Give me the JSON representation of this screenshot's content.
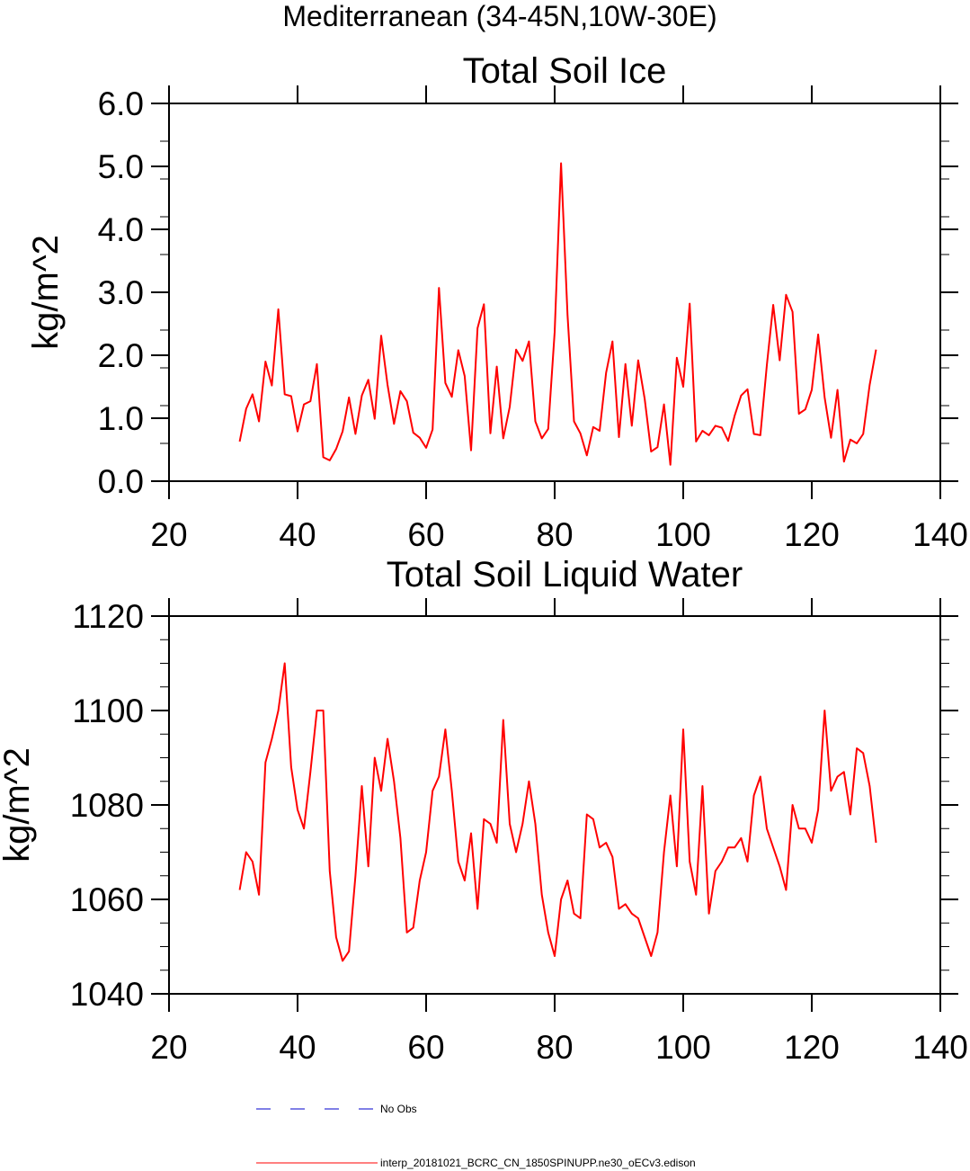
{
  "figure": {
    "title": "Mediterranean (34-45N,10W-30E)"
  },
  "chart_data": [
    {
      "type": "line",
      "title": "Total Soil Ice",
      "xlabel": "",
      "ylabel": "kg/m^2",
      "xlim": [
        20,
        140
      ],
      "ylim": [
        0,
        6
      ],
      "x_ticks": [
        "20",
        "40",
        "60",
        "80",
        "100",
        "120",
        "140"
      ],
      "y_ticks": [
        "0.0",
        "1.0",
        "2.0",
        "3.0",
        "4.0",
        "5.0",
        "6.0"
      ],
      "series": [
        {
          "name": "interp_20181021_BCRC_CN_1850SPINUPP.ne30_oECv3.edison",
          "color": "#ff0000",
          "x_start": 31,
          "values": [
            0.63,
            1.15,
            1.38,
            0.95,
            1.9,
            1.52,
            2.73,
            1.38,
            1.35,
            0.79,
            1.22,
            1.27,
            1.86,
            0.38,
            0.33,
            0.51,
            0.79,
            1.33,
            0.75,
            1.36,
            1.61,
            0.99,
            2.31,
            1.53,
            0.91,
            1.43,
            1.27,
            0.77,
            0.69,
            0.53,
            0.82,
            3.07,
            1.56,
            1.34,
            2.08,
            1.67,
            0.49,
            2.43,
            2.81,
            0.76,
            1.82,
            0.68,
            1.18,
            2.09,
            1.91,
            2.22,
            0.95,
            0.68,
            0.83,
            2.37,
            5.05,
            2.64,
            0.95,
            0.76,
            0.41,
            0.86,
            0.8,
            1.72,
            2.22,
            0.7,
            1.86,
            0.88,
            1.92,
            1.31,
            0.47,
            0.54,
            1.22,
            0.26,
            1.96,
            1.5,
            2.82,
            0.63,
            0.8,
            0.73,
            0.88,
            0.85,
            0.64,
            1.04,
            1.36,
            1.46,
            0.75,
            0.73,
            1.84,
            2.8,
            1.92,
            2.96,
            2.69,
            1.07,
            1.14,
            1.45,
            2.33,
            1.33,
            0.69,
            1.45,
            0.31,
            0.66,
            0.6,
            0.75,
            1.53,
            2.09
          ]
        }
      ]
    },
    {
      "type": "line",
      "title": "Total Soil Liquid Water",
      "xlabel": "",
      "ylabel": "kg/m^2",
      "xlim": [
        20,
        140
      ],
      "ylim": [
        1040,
        1120
      ],
      "x_ticks": [
        "20",
        "40",
        "60",
        "80",
        "100",
        "120",
        "140"
      ],
      "y_ticks": [
        "1040",
        "1060",
        "1080",
        "1100",
        "1120"
      ],
      "series": [
        {
          "name": "interp_20181021_BCRC_CN_1850SPINUPP.ne30_oECv3.edison",
          "color": "#ff0000",
          "x_start": 31,
          "values": [
            1062,
            1070,
            1068,
            1061,
            1089,
            1094,
            1100,
            1110,
            1088,
            1079,
            1075,
            1087,
            1100,
            1100,
            1066,
            1052,
            1047,
            1049,
            1065,
            1084,
            1067,
            1090,
            1083,
            1094,
            1085,
            1073,
            1053,
            1054,
            1064,
            1070,
            1083,
            1086,
            1096,
            1083,
            1068,
            1064,
            1074,
            1058,
            1077,
            1076,
            1072,
            1098,
            1076,
            1070,
            1076,
            1085,
            1076,
            1061,
            1053,
            1048,
            1060,
            1064,
            1057,
            1056,
            1078,
            1077,
            1071,
            1072,
            1069,
            1058,
            1059,
            1057,
            1056,
            1052,
            1048,
            1053,
            1070,
            1082,
            1067,
            1096,
            1068,
            1061,
            1084,
            1057,
            1066,
            1068,
            1071,
            1071,
            1073,
            1068,
            1082,
            1086,
            1075,
            1071,
            1067,
            1062,
            1080,
            1075,
            1075,
            1072,
            1079,
            1100,
            1083,
            1086,
            1087,
            1078,
            1092,
            1091,
            1084,
            1072
          ]
        }
      ]
    }
  ],
  "legend": {
    "entries": [
      {
        "label": "No Obs",
        "color": "#0000cc",
        "style": "dashed"
      },
      {
        "label": "interp_20181021_BCRC_CN_1850SPINUPP.ne30_oECv3.edison",
        "color": "#ff0000",
        "style": "solid"
      }
    ]
  }
}
